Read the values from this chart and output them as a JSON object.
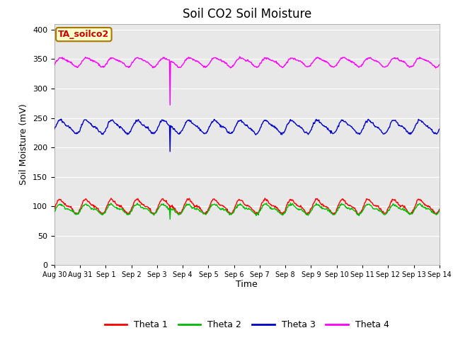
{
  "title": "Soil CO2 Soil Moisture",
  "ylabel": "Soil Moisture (mV)",
  "xlabel": "Time",
  "ylim": [
    0,
    410
  ],
  "yticks": [
    0,
    50,
    100,
    150,
    200,
    250,
    300,
    350,
    400
  ],
  "bg_color": "#e8e8e8",
  "fig_color": "#ffffff",
  "label_box_text": "TA_soilco2",
  "label_box_bg": "#ffffcc",
  "label_box_edge": "#aa7700",
  "colors": {
    "theta1": "#ff0000",
    "theta2": "#00bb00",
    "theta3": "#0000cc",
    "theta4": "#ff00ff"
  },
  "legend_labels": [
    "Theta 1",
    "Theta 2",
    "Theta 3",
    "Theta 4"
  ],
  "x_tick_labels": [
    "Aug 30",
    "Aug 31",
    "Sep 1",
    "Sep 2",
    "Sep 3",
    "Sep 4",
    "Sep 5",
    "Sep 6",
    "Sep 7",
    "Sep 8",
    "Sep 9",
    "Sep 10",
    "Sep 11",
    "Sep 12",
    "Sep 13",
    "Sep 14"
  ],
  "num_days": 15,
  "dip_day": 4.5,
  "base1": 100,
  "base2": 95,
  "base3": 235,
  "base4": 345
}
